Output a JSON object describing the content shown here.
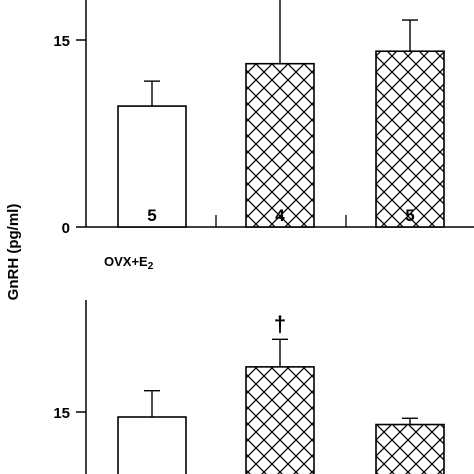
{
  "chart_data": [
    {
      "type": "bar",
      "panel": "top",
      "categories": [
        "",
        "",
        ""
      ],
      "values": [
        9.7,
        13.1,
        14.1
      ],
      "errors": [
        2.0,
        5.2,
        2.5
      ],
      "n_labels": [
        "5",
        "4",
        "5"
      ],
      "fills": [
        "white",
        "crosshatch",
        "crosshatch"
      ],
      "ylim": [
        0,
        18
      ],
      "yticks": [
        "0",
        "15"
      ],
      "ylabel": "GnRH (pg/ml)"
    },
    {
      "type": "bar",
      "panel": "bottom",
      "group_label": "OVX+E",
      "group_label_sub": "2",
      "categories": [
        "",
        "",
        ""
      ],
      "values": [
        14.6,
        18.6,
        14.0
      ],
      "errors": [
        2.1,
        2.2,
        0.5
      ],
      "n_labels": [
        "",
        "",
        ""
      ],
      "fills": [
        "white",
        "crosshatch",
        "crosshatch"
      ],
      "annotation": "†",
      "annotation_bar": 1,
      "ylim": [
        0,
        25
      ],
      "yticks": [
        "15"
      ]
    }
  ]
}
